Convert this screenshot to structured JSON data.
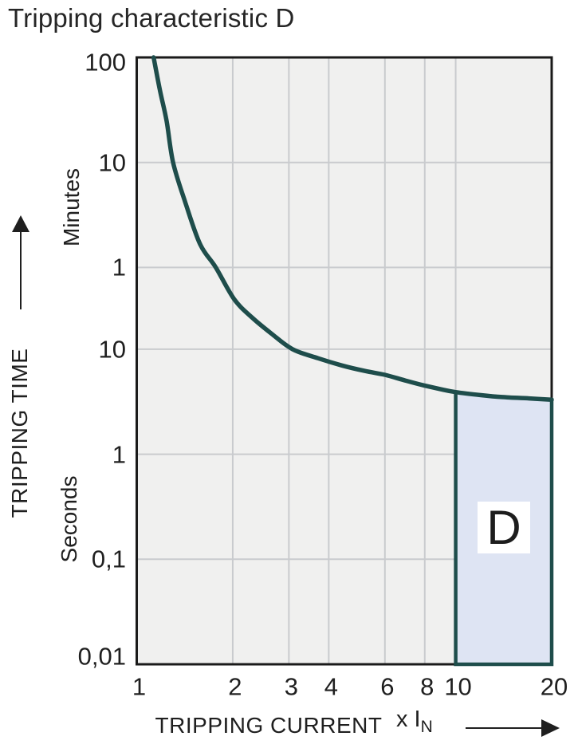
{
  "title": "Tripping characteristic D",
  "colors": {
    "page_bg": "#ffffff",
    "plot_bg": "#f0f0ef",
    "grid": "#c9cbce",
    "border": "#1a1a1a",
    "curve": "#1e4d4b",
    "region_fill": "#dee4f3",
    "region_border": "#1e4d4b",
    "text": "#1f1f1f"
  },
  "y_axis": {
    "label": "TRIPPING TIME",
    "unit_upper": "Minutes",
    "unit_lower": "Seconds"
  },
  "x_axis": {
    "label": "TRIPPING CURRENT",
    "unit_prefix": "x I",
    "unit_sub": "N"
  },
  "icons": {
    "up_arrow": "up-arrow-icon",
    "right_arrow": "right-arrow-icon"
  },
  "chart_data": {
    "type": "line",
    "title": "Tripping characteristic D",
    "x_axis": {
      "label": "TRIPPING CURRENT",
      "unit_prefix": "x I",
      "unit_sub": "N",
      "scale": "log",
      "range": [
        1,
        20
      ],
      "ticks": [
        {
          "label": "1",
          "value": 1
        },
        {
          "label": "2",
          "value": 2
        },
        {
          "label": "3",
          "value": 3
        },
        {
          "label": "4",
          "value": 4
        },
        {
          "label": "6",
          "value": 6
        },
        {
          "label": "8",
          "value": 8
        },
        {
          "label": "10",
          "value": 10
        },
        {
          "label": "20",
          "value": 20
        }
      ],
      "gridlines": [
        2,
        3,
        4,
        6,
        8,
        10
      ]
    },
    "y_axis": {
      "label": "TRIPPING TIME",
      "scale": "log",
      "range_seconds": [
        0.01,
        6000
      ],
      "unit_groups": [
        {
          "unit": "Minutes",
          "ticks": [
            {
              "label": "100",
              "seconds": 6000
            },
            {
              "label": "10",
              "seconds": 600
            },
            {
              "label": "1",
              "seconds": 60
            }
          ]
        },
        {
          "unit": "Seconds",
          "ticks": [
            {
              "label": "10",
              "seconds": 10
            },
            {
              "label": "1",
              "seconds": 1
            },
            {
              "label": "0,1",
              "seconds": 0.1
            },
            {
              "label": "0,01",
              "seconds": 0.01
            }
          ]
        }
      ],
      "gridlines_seconds": [
        600,
        60,
        10,
        1,
        0.1
      ]
    },
    "series": [
      {
        "name": "thermal-tripping-curve",
        "points_multiple_seconds": [
          [
            1.13,
            6000
          ],
          [
            1.18,
            3000
          ],
          [
            1.24,
            1500
          ],
          [
            1.3,
            600
          ],
          [
            1.42,
            250
          ],
          [
            1.58,
            100
          ],
          [
            1.77,
            60
          ],
          [
            2.02,
            30
          ],
          [
            2.3,
            20
          ],
          [
            2.65,
            14
          ],
          [
            3.08,
            10
          ],
          [
            3.7,
            8.2
          ],
          [
            4.4,
            7.0
          ],
          [
            5.2,
            6.2
          ],
          [
            6.0,
            5.7
          ],
          [
            7.0,
            5.0
          ],
          [
            8.0,
            4.5
          ],
          [
            9.0,
            4.15
          ],
          [
            10.0,
            3.9
          ],
          [
            12.0,
            3.65
          ],
          [
            14.0,
            3.5
          ],
          [
            17.0,
            3.4
          ],
          [
            20.0,
            3.3
          ]
        ]
      }
    ],
    "region": {
      "label": "D",
      "x_range": [
        10,
        20
      ],
      "y_bottom_seconds": 0.01,
      "top_follows_curve": true
    }
  }
}
